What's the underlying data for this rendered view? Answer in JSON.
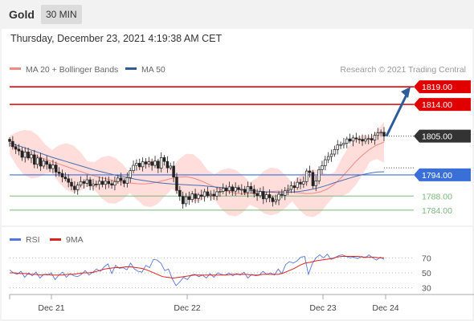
{
  "header": {
    "symbol": "Gold",
    "timeframe": "30 MIN"
  },
  "timestamp": "Thursday, December 23, 2021 4:19:38 AM CET",
  "credit": "Research © 2021 Trading Central",
  "colors": {
    "resistance": "#e00000",
    "support": "#3a6fd8",
    "minor_support": "#7ab87a",
    "price": "#333333",
    "arrow": "#2e5c9a",
    "bollinger": "#ffd7d4",
    "ma20": "#f08a84",
    "ma50": "#4a6db0",
    "rsi": "#5577dd",
    "rsi_ma": "#dd2222"
  },
  "chart_data": [
    {
      "type": "candlestick",
      "title": "Gold",
      "legend": [
        {
          "name": "MA 20 + Bollinger Bands",
          "color": "#f08a84"
        },
        {
          "name": "MA 50",
          "color": "#2e5c9a"
        }
      ],
      "ylim": [
        1781,
        1822
      ],
      "x_ticks": [
        "Dec 21",
        "Dec 22",
        "Dec 23",
        "Dec 24"
      ],
      "levels": [
        {
          "label": "1819.00",
          "value": 1819.0,
          "kind": "resistance"
        },
        {
          "label": "1814.00",
          "value": 1814.0,
          "kind": "resistance"
        },
        {
          "label": "1805.00",
          "value": 1805.0,
          "kind": "last"
        },
        {
          "label": "1794.00",
          "value": 1794.0,
          "kind": "support"
        },
        {
          "label": "1788.00",
          "value": 1788.0,
          "kind": "minor"
        },
        {
          "label": "1784.00",
          "value": 1784.0,
          "kind": "minor"
        }
      ],
      "close": [
        1803.5,
        1802.0,
        1801.3,
        1800.8,
        1799.0,
        1800.5,
        1798.8,
        1799.7,
        1797.0,
        1798.8,
        1796.5,
        1797.9,
        1797.0,
        1795.8,
        1796.8,
        1794.8,
        1794.4,
        1793.4,
        1792.9,
        1791.9,
        1790.8,
        1789.8,
        1791.1,
        1792.1,
        1791.6,
        1792.6,
        1790.9,
        1791.4,
        1791.3,
        1792.2,
        1791.3,
        1792.2,
        1791.5,
        1791.1,
        1792.1,
        1793.1,
        1792.4,
        1791.6,
        1793.2,
        1795.2,
        1796.7,
        1797.3,
        1796.3,
        1797.7,
        1797.1,
        1797.7,
        1796.7,
        1797.9,
        1795.9,
        1798.9,
        1797.8,
        1796.0,
        1796.5,
        1793.4,
        1789.6,
        1787.9,
        1785.8,
        1787.8,
        1787.0,
        1788.6,
        1787.3,
        1788.3,
        1787.9,
        1789.2,
        1788.1,
        1788.5,
        1788.0,
        1789.2,
        1789.3,
        1790.2,
        1789.5,
        1790.6,
        1789.4,
        1790.4,
        1789.8,
        1789.9,
        1789.0,
        1790.7,
        1789.9,
        1788.7,
        1788.1,
        1789.3,
        1787.2,
        1788.4,
        1787.5,
        1786.4,
        1786.9,
        1788.5,
        1788.2,
        1789.5,
        1789.9,
        1790.9,
        1790.4,
        1791.9,
        1791.4,
        1792.1,
        1795.1,
        1794.7,
        1790.9,
        1792.3,
        1795.5,
        1796.6,
        1798.3,
        1799.2,
        1799.9,
        1801.2,
        1802.5,
        1802.6,
        1803.0,
        1804.2,
        1803.6,
        1804.5,
        1804.2,
        1804.1,
        1803.6,
        1804.2,
        1804.3,
        1803.9,
        1805.2,
        1805.9,
        1806.1,
        1805.0
      ],
      "series": [
        {
          "name": "MA 20",
          "values": [
            1802.5,
            1801.3,
            1800.4,
            1799.8,
            1799.2,
            1798.5,
            1797.8,
            1797.1,
            1796.4,
            1795.7,
            1795.0,
            1794.3,
            1793.7,
            1793.2,
            1792.7,
            1792.3,
            1792.0,
            1791.7,
            1791.5,
            1791.4,
            1791.6,
            1792.0,
            1792.5,
            1793.0,
            1793.4,
            1793.5,
            1793.1,
            1792.4,
            1791.5,
            1790.6,
            1789.8,
            1789.2,
            1788.8,
            1788.6,
            1788.7,
            1788.9,
            1789.1,
            1789.3,
            1789.4,
            1789.3,
            1789.1,
            1788.9,
            1788.7,
            1788.8,
            1789.2,
            1790.0,
            1791.4,
            1793.3,
            1795.5,
            1797.8,
            1799.7,
            1801.3,
            1802.5,
            1803.3
          ]
        },
        {
          "name": "MA 50",
          "values": [
            1803.0,
            1802.4,
            1801.8,
            1801.1,
            1800.4,
            1799.7,
            1799.0,
            1798.4,
            1797.8,
            1797.2,
            1796.6,
            1796.0,
            1795.4,
            1794.9,
            1794.4,
            1793.9,
            1793.5,
            1793.1,
            1792.7,
            1792.4,
            1792.1,
            1791.8,
            1791.6,
            1791.4,
            1791.3,
            1791.2,
            1791.1,
            1791.0,
            1790.8,
            1790.6,
            1790.4,
            1790.2,
            1790.0,
            1789.8,
            1789.6,
            1789.4,
            1789.2,
            1789.1,
            1789.0,
            1789.0,
            1789.1,
            1789.3,
            1789.6,
            1790.0,
            1790.5,
            1791.1,
            1791.8,
            1792.4,
            1793.0,
            1793.6,
            1794.1,
            1794.5,
            1794.8,
            1794.9
          ]
        }
      ],
      "annotation": {
        "type": "arrow",
        "target": 1819.0
      }
    },
    {
      "type": "line",
      "legend": [
        {
          "name": "RSI",
          "color": "#5577dd"
        },
        {
          "name": "9MA",
          "color": "#dd2222"
        }
      ],
      "y_ticks": [
        70,
        50,
        30
      ],
      "ylim": [
        20,
        80
      ],
      "series": [
        {
          "name": "RSI",
          "values": [
            54,
            50,
            48,
            52,
            44,
            50,
            46,
            51,
            43,
            48,
            47,
            50,
            41,
            47,
            51,
            44,
            49,
            46,
            45,
            48,
            53,
            47,
            51,
            55,
            52,
            58,
            62,
            49,
            60,
            56,
            57,
            54,
            63,
            55,
            52,
            51,
            60,
            57,
            68,
            67,
            63,
            53,
            55,
            42,
            33,
            38,
            44,
            41,
            47,
            48,
            45,
            47,
            43,
            49,
            44,
            50,
            48,
            47,
            50,
            46,
            49,
            47,
            51,
            43,
            48,
            46,
            47,
            52,
            48,
            50,
            47,
            55,
            49,
            61,
            65,
            63,
            66,
            71,
            72,
            48,
            62,
            70,
            74,
            70,
            75,
            68,
            70,
            73,
            74,
            72,
            70,
            71,
            69,
            72,
            70,
            74,
            70,
            67,
            71,
            68
          ]
        },
        {
          "name": "9MA",
          "values": [
            50,
            50,
            49,
            49,
            48,
            48,
            47,
            48,
            47,
            47,
            47,
            48,
            48,
            49,
            50,
            50,
            51,
            53,
            55,
            56,
            57,
            57,
            58,
            58,
            57,
            56,
            54,
            51,
            48,
            45,
            44,
            43,
            44,
            45,
            46,
            47,
            47,
            47,
            47,
            47,
            47,
            47,
            48,
            48,
            48,
            48,
            47,
            47,
            48,
            48,
            48,
            48,
            50,
            53,
            56,
            60,
            63,
            64,
            66,
            67,
            68,
            69,
            71,
            72,
            72,
            72,
            72,
            71,
            71,
            71,
            70,
            70
          ]
        }
      ]
    }
  ]
}
